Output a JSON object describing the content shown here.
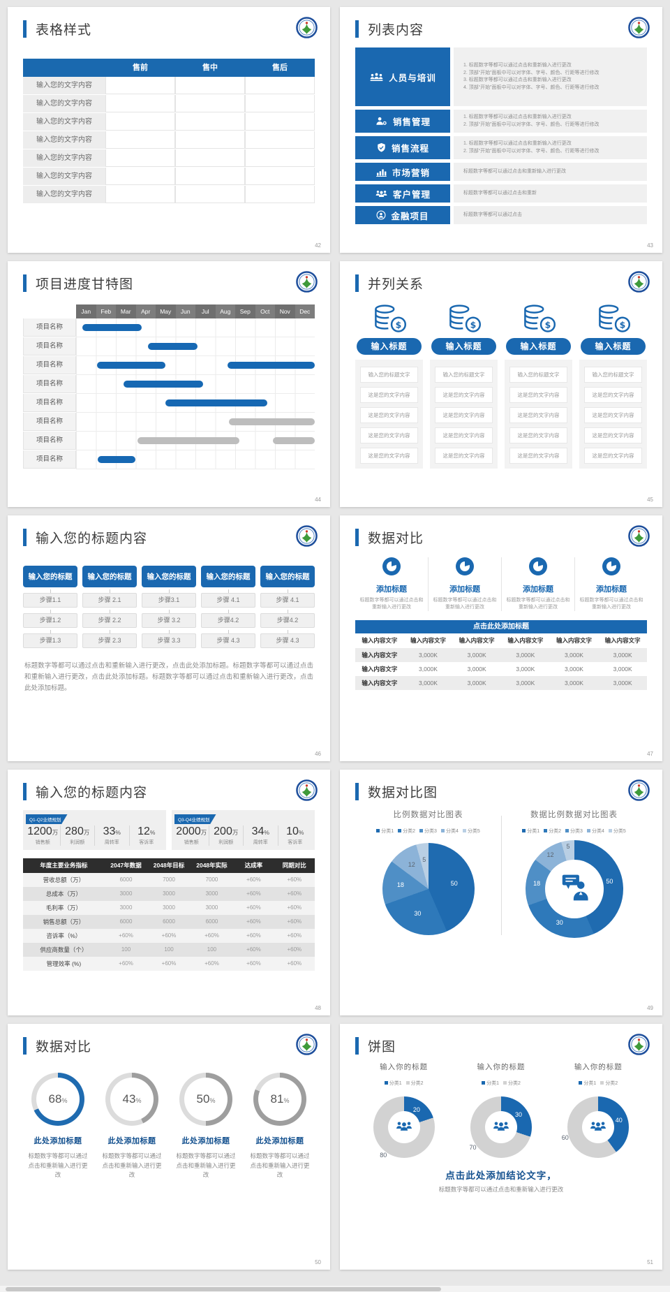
{
  "colors": {
    "accent": "#1a68b0",
    "title_blue": "#14518f",
    "bar_blue": "#1668b3",
    "bar_gray": "#bdbdbd",
    "dark_header": "#2d2d2d",
    "pie_palette": [
      "#1f6bb0",
      "#2e79ba",
      "#4f8fc6",
      "#8cb3d8",
      "#b9cfe4"
    ],
    "ring_track": "#dcdcdc",
    "ring_blue": "#1f6bb0",
    "ring_gray": "#9e9e9e",
    "donut_gray": "#d2d2d2"
  },
  "slide42": {
    "page_num": "42",
    "title": "表格样式",
    "table": {
      "headers": [
        "售前",
        "售中",
        "售后"
      ],
      "row_label": "输入您的文字内容",
      "row_count": 7
    }
  },
  "slide43": {
    "page_num": "43",
    "title": "列表内容",
    "items": [
      {
        "icon": "people-training-icon",
        "label": "人员与培训",
        "lines": [
          "1.  标题数字等都可以通过点击和重新输入进行更改",
          "2.  顶部“开始”面板中可以对字体、字号、颜色、行距等进行修改",
          "3.  标题数字等都可以通过点击和重新输入进行更改",
          "4.  顶部“开始”面板中可以对字体、字号、颜色、行距等进行修改"
        ]
      },
      {
        "icon": "sales-management-icon",
        "label": "销售管理",
        "lines": [
          "1.  标题数字等都可以通过点击和重新输入进行更改",
          "2.  顶部“开始”面板中可以对字体、字号、颜色、行距等进行修改"
        ]
      },
      {
        "icon": "sales-process-icon",
        "label": "销售流程",
        "lines": [
          "1.  标题数字等都可以通过点击和重新输入进行更改",
          "2.  顶部“开始”面板中可以对字体、字号、颜色、行距等进行修改"
        ]
      },
      {
        "icon": "marketing-icon",
        "label": "市场营销",
        "lines": [
          "标题数字等都可以通过点击和重新输入进行更改"
        ]
      },
      {
        "icon": "customer-management-icon",
        "label": "客户管理",
        "lines": [
          "标题数字等都可以通过点击和重新"
        ]
      },
      {
        "icon": "finance-project-icon",
        "label": "金融项目",
        "lines": [
          "标题数字等都可以通过点击"
        ]
      }
    ]
  },
  "slide44": {
    "page_num": "44",
    "title": "项目进度甘特图",
    "months": [
      "Jan",
      "Feb",
      "Mar",
      "Apr",
      "May",
      "Jun",
      "Jul",
      "Aug",
      "Sep",
      "Oct",
      "Nov",
      "Dec"
    ],
    "row_label": "项目名称",
    "rows": [
      {
        "bars": [
          {
            "start": 0.3,
            "end": 3.3,
            "color": "blue"
          }
        ]
      },
      {
        "bars": [
          {
            "start": 3.6,
            "end": 6.1,
            "color": "blue"
          }
        ]
      },
      {
        "bars": [
          {
            "start": 1.05,
            "end": 4.5,
            "color": "blue"
          },
          {
            "start": 7.6,
            "end": 12,
            "color": "blue"
          }
        ]
      },
      {
        "bars": [
          {
            "start": 2.4,
            "end": 6.4,
            "color": "blue"
          }
        ]
      },
      {
        "bars": [
          {
            "start": 4.5,
            "end": 9.6,
            "color": "blue"
          }
        ]
      },
      {
        "bars": [
          {
            "start": 7.7,
            "end": 12,
            "color": "gray"
          }
        ]
      },
      {
        "bars": [
          {
            "start": 3.1,
            "end": 8.2,
            "color": "gray"
          },
          {
            "start": 9.9,
            "end": 12,
            "color": "gray"
          }
        ]
      },
      {
        "bars": [
          {
            "start": 1.1,
            "end": 3.0,
            "color": "blue"
          }
        ]
      }
    ]
  },
  "slide45": {
    "page_num": "45",
    "title": "并列关系",
    "column_count": 4,
    "column_title": "输入标题",
    "icon": "coins-dollar-icon",
    "first_row": "输入您的标题文字",
    "row_text": "这是您的文字内容",
    "row_count": 4
  },
  "slide46": {
    "page_num": "46",
    "title": "输入您的标题内容",
    "header": "输入您的标题",
    "columns": [
      [
        "步骤1.1",
        "步骤1.2",
        "步骤1.3"
      ],
      [
        "步骤 2.1",
        "步骤 2.2",
        "步骤 2.3"
      ],
      [
        "步骤3.1",
        "步骤 3.2",
        "步骤 3.3"
      ],
      [
        "步骤 4.1",
        "步骤4.2",
        "步骤 4.3"
      ],
      [
        "步骤 4.1",
        "步骤4.2",
        "步骤 4.3"
      ]
    ],
    "paragraph": "标题数字等都可以通过点击和重新输入进行更改，点击此处添加标题。标题数字等都可以通过点击和重新输入进行更改，点击此处添加标题。标题数字等都可以通过点击和重新输入进行更改，点击此处添加标题。"
  },
  "slide47": {
    "page_num": "47",
    "title": "数据对比",
    "feature": {
      "count": 4,
      "icon": "pie-chart-icon",
      "title": "添加标题",
      "desc": "标题数字等都可以通过点击和重新输入进行更改"
    },
    "banner": "点击此处添加标题",
    "table": {
      "header_cell": "输入内容文字",
      "col_count": 6,
      "row_label": "输入内容文字",
      "value": "3,000K",
      "row_count": 3
    }
  },
  "slide48": {
    "page_num": "48",
    "title": "输入您的标题内容",
    "panels": [
      {
        "badge": "Q1-Q2业绩规划",
        "stats": [
          [
            "1200",
            "万",
            "销售额"
          ],
          [
            "280",
            "万",
            "利润额"
          ],
          [
            "33",
            "%",
            "周转率"
          ],
          [
            "12",
            "%",
            "客诉率"
          ]
        ]
      },
      {
        "badge": "Q3-Q4业绩规划",
        "stats": [
          [
            "2000",
            "万",
            "销售额"
          ],
          [
            "200",
            "万",
            "利润额"
          ],
          [
            "34",
            "%",
            "周转率"
          ],
          [
            "10",
            "%",
            "客诉率"
          ]
        ]
      }
    ],
    "table": {
      "headers": [
        "年度主要业务指标",
        "2047年数据",
        "2048年目标",
        "2048年实际",
        "达成率",
        "同期对比"
      ],
      "rows": [
        [
          "营收总额（万）",
          "6000",
          "7000",
          "7000",
          "+60%",
          "+60%"
        ],
        [
          "总成本（万）",
          "3000",
          "3000",
          "3000",
          "+60%",
          "+60%"
        ],
        [
          "毛利率（万）",
          "3000",
          "3000",
          "3000",
          "+60%",
          "+60%"
        ],
        [
          "销售总额（万）",
          "6000",
          "6000",
          "6000",
          "+60%",
          "+60%"
        ],
        [
          "咨诉率（%）",
          "+60%",
          "+60%",
          "+60%",
          "+60%",
          "+60%"
        ],
        [
          "供应商数量（个）",
          "100",
          "100",
          "100",
          "+60%",
          "+60%"
        ],
        [
          "管理效率 (%)",
          "+60%",
          "+60%",
          "+60%",
          "+60%",
          "+60%"
        ]
      ]
    }
  },
  "slide49": {
    "page_num": "49",
    "title": "数据对比图",
    "left_title": "比例数据对比图表",
    "right_title": "数据比例数据对比图表",
    "legend": [
      "分类1",
      "分类2",
      "分类3",
      "分类4",
      "分类5"
    ],
    "values": [
      50,
      30,
      18,
      12,
      5
    ]
  },
  "slide50": {
    "page_num": "50",
    "title": "数据对比",
    "item_title": "此处添加标题",
    "item_desc": "标题数字等都可以通过点击和重新输入进行更改",
    "percents": [
      68,
      43,
      50,
      81
    ]
  },
  "slide51": {
    "page_num": "51",
    "title": "饼图",
    "chart_title": "输入你的标题",
    "legend": [
      "分类1",
      "分类2"
    ],
    "charts": [
      {
        "blue": 20,
        "gray": 80
      },
      {
        "blue": 30,
        "gray": 70
      },
      {
        "blue": 40,
        "gray": 60
      }
    ],
    "conclusion_title": "点击此处添加结论文字，",
    "conclusion_desc": "标题数字等都可以通过点击和重新输入进行更改"
  },
  "chart_data": [
    {
      "type": "gantt",
      "title": "项目进度甘特图",
      "x": [
        "Jan",
        "Feb",
        "Mar",
        "Apr",
        "May",
        "Jun",
        "Jul",
        "Aug",
        "Sep",
        "Oct",
        "Nov",
        "Dec"
      ],
      "rows": [
        [
          "项目名称",
          [
            [
              0.3,
              3.3,
              "blue"
            ]
          ]
        ],
        [
          "项目名称",
          [
            [
              3.6,
              6.1,
              "blue"
            ]
          ]
        ],
        [
          "项目名称",
          [
            [
              1.05,
              4.5,
              "blue"
            ],
            [
              7.6,
              12,
              "blue"
            ]
          ]
        ],
        [
          "项目名称",
          [
            [
              2.4,
              6.4,
              "blue"
            ]
          ]
        ],
        [
          "项目名称",
          [
            [
              4.5,
              9.6,
              "blue"
            ]
          ]
        ],
        [
          "项目名称",
          [
            [
              7.7,
              12,
              "gray"
            ]
          ]
        ],
        [
          "项目名称",
          [
            [
              3.1,
              8.2,
              "gray"
            ],
            [
              9.9,
              12,
              "gray"
            ]
          ]
        ],
        [
          "项目名称",
          [
            [
              1.1,
              3.0,
              "blue"
            ]
          ]
        ]
      ]
    },
    {
      "type": "pie",
      "title": "比例数据对比图表",
      "labels": [
        "分类1",
        "分类2",
        "分类3",
        "分类4",
        "分类5"
      ],
      "values": [
        50,
        30,
        18,
        12,
        5
      ],
      "legend_position": "top"
    },
    {
      "type": "pie",
      "subtype": "donut",
      "title": "数据比例数据对比图表",
      "labels": [
        "分类1",
        "分类2",
        "分类3",
        "分类4",
        "分类5"
      ],
      "values": [
        50,
        30,
        18,
        12,
        5
      ],
      "legend_position": "top"
    },
    {
      "type": "pie",
      "subtype": "progress-rings",
      "title": "数据对比",
      "values": [
        68,
        43,
        50,
        81
      ]
    },
    {
      "type": "pie",
      "subtype": "donut",
      "title": "饼图",
      "labels": [
        "分类1",
        "分类2"
      ],
      "series": [
        [
          20,
          80
        ],
        [
          30,
          70
        ],
        [
          40,
          60
        ]
      ]
    }
  ]
}
